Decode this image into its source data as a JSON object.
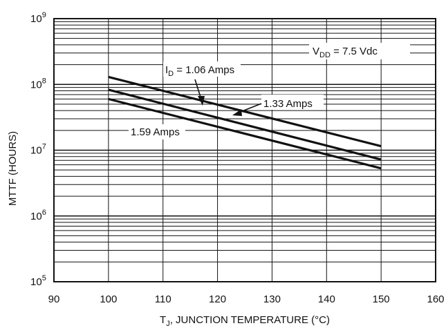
{
  "chart_data": {
    "type": "line",
    "title": "",
    "xlabel_main": "T",
    "xlabel_sub": "J",
    "xlabel_rest": ", JUNCTION TEMPERATURE (°C)",
    "ylabel": "MTTF (HOURS)",
    "xlim": [
      90,
      160
    ],
    "ylim": [
      100000,
      1000000000
    ],
    "y_scale": "log",
    "grid": true,
    "x_ticks": [
      "90",
      "100",
      "110",
      "120",
      "130",
      "140",
      "150",
      "160"
    ],
    "y_ticks": [
      {
        "base": "10",
        "exp": "5"
      },
      {
        "base": "10",
        "exp": "6"
      },
      {
        "base": "10",
        "exp": "7"
      },
      {
        "base": "10",
        "exp": "8"
      },
      {
        "base": "10",
        "exp": "9"
      }
    ],
    "series": [
      {
        "name": "1.06 Amps",
        "x": [
          100,
          150
        ],
        "y": [
          130000000,
          11500000
        ]
      },
      {
        "name": "1.33 Amps",
        "x": [
          100,
          150
        ],
        "y": [
          83000000,
          7200000
        ]
      },
      {
        "name": "1.59 Amps",
        "x": [
          100,
          150
        ],
        "y": [
          60000000,
          5300000
        ]
      }
    ],
    "annotations": {
      "vdd_main": "V",
      "vdd_sub": "DD",
      "vdd_rest": " = 7.5 Vdc",
      "id_main": "I",
      "id_sub": "D",
      "id_rest": " = 1.06 Amps",
      "label_133": "1.33 Amps",
      "label_159": "1.59 Amps"
    }
  }
}
